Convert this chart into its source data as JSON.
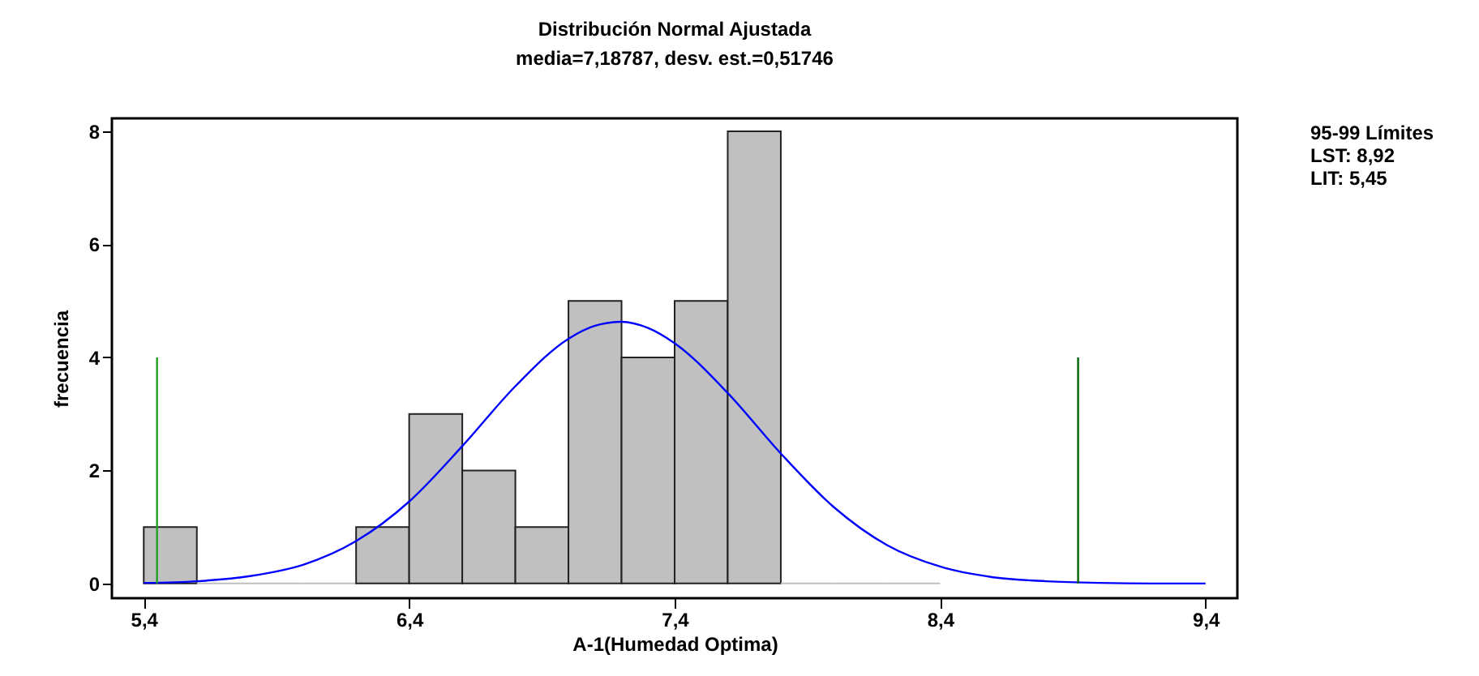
{
  "chart_data": {
    "type": "histogram",
    "title": "Distribución Normal Ajustada",
    "subtitle": "media=7,18787, desv. est.=0,51746",
    "xlabel": "A-1(Humedad Optima)",
    "ylabel": "frecuencia",
    "bins": [
      5.4,
      5.6,
      5.8,
      6.0,
      6.2,
      6.4,
      6.6,
      6.8,
      7.0,
      7.2,
      7.4,
      7.6,
      7.8,
      8.0,
      8.2,
      8.4
    ],
    "values": [
      1,
      0,
      0,
      0,
      1,
      3,
      2,
      1,
      5,
      4,
      5,
      8,
      0,
      0,
      0
    ],
    "color": "#c0c0c0",
    "series": [
      {
        "type": "line",
        "color": "#0000ff",
        "x": [
          5.4,
          5.6,
          5.8,
          6.0,
          6.2,
          6.4,
          6.6,
          6.8,
          7.0,
          7.1,
          7.2,
          7.3,
          7.4,
          7.6,
          7.8,
          8.0,
          8.2,
          8.4,
          8.6,
          8.8,
          9.0,
          9.2,
          9.4
        ],
        "values": [
          0.01,
          0.04,
          0.13,
          0.33,
          0.75,
          1.45,
          2.43,
          3.49,
          4.33,
          4.56,
          4.63,
          4.52,
          4.25,
          3.37,
          2.3,
          1.35,
          0.68,
          0.3,
          0.11,
          0.04,
          0.01,
          0.0,
          0.0
        ]
      },
      {
        "type": "line",
        "color": "#22a022",
        "x": [
          5.45,
          5.45
        ],
        "values": [
          0,
          4
        ]
      },
      {
        "type": "line",
        "color": "#006400",
        "x": [
          8.92,
          8.92
        ],
        "values": [
          0,
          4
        ]
      }
    ],
    "xlim": [
      5.28,
      9.52
    ],
    "ylim": [
      -0.26,
      8.23
    ],
    "xticks": [
      {
        "value": 5.4,
        "label": "5,4"
      },
      {
        "value": 6.4,
        "label": "6,4"
      },
      {
        "value": 7.4,
        "label": "7,4"
      },
      {
        "value": 8.4,
        "label": "8,4"
      },
      {
        "value": 9.4,
        "label": "9,4"
      }
    ],
    "yticks": [
      0,
      2,
      4,
      6,
      8
    ],
    "annotations": [
      "95-99 Límites",
      "LST: 8,92",
      "LIT: 5,45"
    ],
    "grid": false
  }
}
